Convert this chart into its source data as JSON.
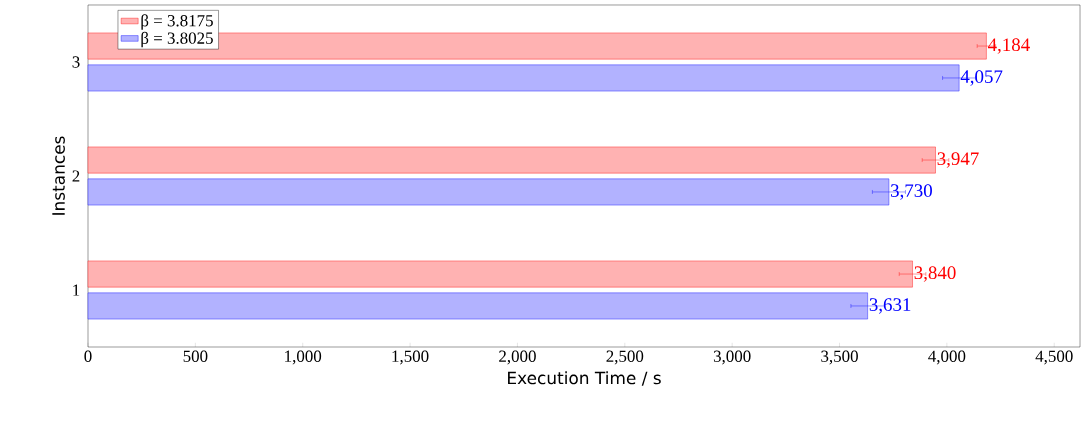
{
  "chart_data": {
    "type": "bar",
    "orientation": "horizontal",
    "xlabel": "Execution Time / s",
    "ylabel": "Instances",
    "categories": [
      "3",
      "2",
      "1"
    ],
    "series": [
      {
        "name": "β = 3.8175",
        "color": "#ff0000",
        "values": [
          4184,
          3947,
          3840
        ],
        "errors": [
          43,
          62,
          62
        ],
        "value_labels": [
          "4,184",
          "3,947",
          "3,840"
        ]
      },
      {
        "name": "β = 3.8025",
        "color": "#0000ff",
        "values": [
          4057,
          3730,
          3631
        ],
        "errors": [
          77,
          77,
          78
        ],
        "value_labels": [
          "4,057",
          "3,730",
          "3,631"
        ]
      }
    ],
    "xlim": [
      0,
      4620
    ],
    "xticks": [
      0,
      500,
      {
        "value": 1000,
        "label": "1,000"
      },
      {
        "value": 1500,
        "label": "1,500"
      },
      {
        "value": 2000,
        "label": "2,000"
      },
      {
        "value": 2500,
        "label": "2,500"
      },
      {
        "value": 3000,
        "label": "3,000"
      },
      {
        "value": 3500,
        "label": "3,500"
      },
      {
        "value": 4000,
        "label": "4,000"
      },
      {
        "value": 4500,
        "label": "4,500"
      }
    ],
    "legend": "top left",
    "grid": false
  }
}
